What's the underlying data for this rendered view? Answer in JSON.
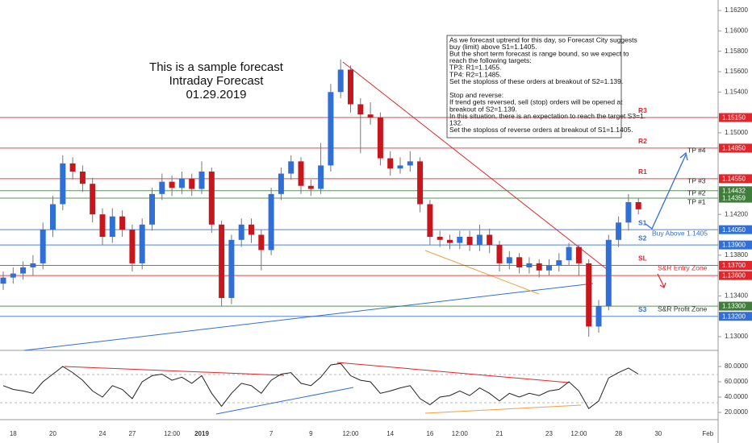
{
  "chart_data": {
    "type": "candlestick",
    "title_lines": [
      "This is a sample forecast",
      "Intraday Forecast",
      "01.29.2019"
    ],
    "note_lines": [
      "As we forecast uptrend for this day, so Forecast City suggests",
      "buy (limit) above S1=1.1405.",
      "But the short term forecast is range bound, so we expect to",
      "reach the following targets:",
      "TP3: R1=1.1455.",
      "TP4: R2=1.1485.",
      "Set the stoploss of these orders at breakout of S2=1.139.",
      "",
      "Stop and reverse:",
      "If trend gets reversed, sell (stop) orders will be opened at",
      "breakout of S2=1.139.",
      "In this situation, there is an expectation to reach the target S3=1.",
      "132.",
      "Set the stoploss of reverse orders at breakout of S1=1.1405."
    ],
    "categories": [
      null,
      "18",
      null,
      null,
      null,
      "20",
      null,
      null,
      null,
      null,
      "24",
      null,
      null,
      "27",
      null,
      null,
      null,
      "12:00",
      null,
      null,
      "2019",
      null,
      null,
      null,
      null,
      null,
      null,
      "7",
      null,
      null,
      null,
      "9",
      null,
      null,
      null,
      "12:00",
      null,
      null,
      null,
      "14",
      null,
      null,
      null,
      "16",
      null,
      null,
      "12:00",
      null,
      null,
      null,
      "21",
      null,
      null,
      null,
      null,
      "23",
      null,
      null,
      "12:00",
      null,
      null,
      null,
      "28",
      null,
      null,
      null,
      "30",
      null,
      null,
      null,
      null,
      "Feb"
    ],
    "open": [
      1.1352,
      1.1358,
      1.1362,
      1.1368,
      1.1372,
      1.1405,
      1.143,
      1.147,
      1.1462,
      1.145,
      1.142,
      1.1398,
      1.1418,
      1.1405,
      1.1372,
      1.141,
      1.144,
      1.1452,
      1.1446,
      1.1455,
      1.1445,
      1.1462,
      1.141,
      1.1338,
      1.1395,
      1.141,
      1.14,
      1.1385,
      1.144,
      1.146,
      1.1472,
      1.1448,
      1.1445,
      1.1468,
      1.154,
      1.1562,
      1.1528,
      1.1518,
      1.1515,
      1.1475,
      1.1465,
      1.1468,
      1.1472,
      1.143,
      1.1398,
      1.1395,
      1.1392,
      1.1398,
      1.139,
      1.14,
      1.139,
      1.1372,
      1.1378,
      1.1368,
      1.1372,
      1.1365,
      1.137,
      1.1375,
      1.1388,
      1.1372,
      1.131,
      1.133,
      1.1395,
      1.1412,
      1.1432,
      null,
      null,
      null,
      null,
      null,
      null,
      null
    ],
    "high": [
      1.1364,
      1.1368,
      1.1374,
      1.138,
      1.1412,
      1.1438,
      1.1478,
      1.1476,
      1.1468,
      1.1456,
      1.1426,
      1.1426,
      1.1424,
      1.141,
      1.1416,
      1.1446,
      1.146,
      1.1458,
      1.1462,
      1.146,
      1.1472,
      1.1466,
      1.1414,
      1.14,
      1.1416,
      1.1416,
      1.1405,
      1.1446,
      1.1466,
      1.1478,
      1.1476,
      1.1454,
      1.149,
      1.1548,
      1.1572,
      1.1566,
      1.1534,
      1.153,
      1.152,
      1.1482,
      1.1476,
      1.1482,
      1.1476,
      1.1434,
      1.1404,
      1.14,
      1.1404,
      1.1404,
      1.141,
      1.1406,
      1.1394,
      1.1384,
      1.1382,
      1.1378,
      1.1376,
      1.1376,
      1.1382,
      1.1392,
      1.139,
      1.1376,
      1.1336,
      1.14,
      1.1418,
      1.144,
      1.1436,
      null,
      null,
      null,
      null,
      null,
      null,
      null
    ],
    "low": [
      1.1346,
      1.1352,
      1.1356,
      1.136,
      1.1366,
      1.1398,
      1.1424,
      1.1454,
      1.1442,
      1.1412,
      1.139,
      1.1392,
      1.1398,
      1.1364,
      1.1366,
      1.1404,
      1.1434,
      1.1438,
      1.144,
      1.1438,
      1.144,
      1.1402,
      1.133,
      1.1332,
      1.1388,
      1.1392,
      1.1365,
      1.138,
      1.1434,
      1.1454,
      1.144,
      1.1438,
      1.144,
      1.1462,
      1.1534,
      1.152,
      1.148,
      1.1508,
      1.1468,
      1.1458,
      1.146,
      1.1462,
      1.1422,
      1.139,
      1.1388,
      1.1386,
      1.1386,
      1.1384,
      1.1384,
      1.1382,
      1.1364,
      1.1366,
      1.1362,
      1.1362,
      1.1358,
      1.136,
      1.1364,
      1.137,
      1.136,
      1.13,
      1.1304,
      1.1326,
      1.1388,
      1.1404,
      1.142,
      null,
      null,
      null,
      null,
      null,
      null,
      null
    ],
    "close": [
      1.1358,
      1.1362,
      1.1368,
      1.1372,
      1.1405,
      1.143,
      1.147,
      1.1462,
      1.145,
      1.142,
      1.1398,
      1.1418,
      1.1405,
      1.1372,
      1.141,
      1.144,
      1.1452,
      1.1446,
      1.1455,
      1.1445,
      1.1462,
      1.141,
      1.1338,
      1.1395,
      1.141,
      1.14,
      1.1385,
      1.144,
      1.146,
      1.1472,
      1.1448,
      1.1445,
      1.1468,
      1.154,
      1.1562,
      1.1528,
      1.1518,
      1.1515,
      1.1475,
      1.1465,
      1.1468,
      1.1472,
      1.143,
      1.1398,
      1.1395,
      1.1392,
      1.1398,
      1.139,
      1.14,
      1.139,
      1.1372,
      1.1378,
      1.1368,
      1.1372,
      1.1365,
      1.137,
      1.1375,
      1.1388,
      1.1372,
      1.131,
      1.133,
      1.1395,
      1.1412,
      1.1432,
      1.1425,
      null,
      null,
      null,
      null,
      null,
      null,
      null
    ],
    "up_color": "#2f6fd6",
    "down_color": "#c8161d",
    "ylim": [
      1.12866,
      1.16303
    ],
    "yticks": [
      {
        "value": 1.162,
        "label": "1.16200"
      },
      {
        "value": 1.16,
        "label": "1.16000"
      },
      {
        "value": 1.158,
        "label": "1.15800"
      },
      {
        "value": 1.156,
        "label": "1.15600"
      },
      {
        "value": 1.154,
        "label": "1.15400"
      },
      {
        "value": 1.15,
        "label": "1.15000"
      },
      {
        "value": 1.142,
        "label": "1.14200"
      },
      {
        "value": 1.138,
        "label": "1.13800"
      },
      {
        "value": 1.134,
        "label": "1.13400"
      },
      {
        "value": 1.13,
        "label": "1.13000"
      }
    ],
    "levels": [
      {
        "name": "R3",
        "value": 1.1515,
        "label": "1.15150",
        "color": "#e0262b"
      },
      {
        "name": "R2",
        "value": 1.1485,
        "label": "1.14850",
        "color": "#e0262b"
      },
      {
        "name": "R1",
        "value": 1.1455,
        "label": "1.14550",
        "color": "#e0262b"
      },
      {
        "value": 1.14432,
        "label": "1.14432",
        "color": "#3f7d3a"
      },
      {
        "value": 1.14359,
        "label": "1.14359",
        "color": "#3f7d3a"
      },
      {
        "name": "S1",
        "value": 1.1405,
        "label": "1.14050",
        "color": "#2f6fd6"
      },
      {
        "name": "S2",
        "value": 1.139,
        "label": "1.13900",
        "color": "#2f6fd6"
      },
      {
        "name": "SL",
        "value": 1.137,
        "label": "1.13700",
        "color": "#e0262b"
      },
      {
        "value": 1.136,
        "label": "1.13600",
        "color": "#e0262b"
      },
      {
        "value": 1.133,
        "label": "1.13300",
        "color": "#3f7d3a"
      },
      {
        "name": "S3",
        "value": 1.132,
        "label": "1.13200",
        "color": "#2f6fd6"
      }
    ],
    "annotations": [
      "TP #4",
      "TP #3",
      "TP #2",
      "TP #1",
      "Buy Above 1.1405",
      "S&R Entry Zone",
      "S&R Profit Zone"
    ],
    "rsi": {
      "values": [
        55,
        50,
        48,
        45,
        60,
        70,
        80,
        72,
        62,
        48,
        40,
        55,
        50,
        38,
        60,
        68,
        70,
        62,
        66,
        58,
        68,
        45,
        28,
        45,
        58,
        55,
        45,
        62,
        70,
        72,
        58,
        55,
        66,
        82,
        84,
        68,
        62,
        60,
        45,
        48,
        52,
        55,
        38,
        30,
        40,
        42,
        48,
        42,
        52,
        45,
        35,
        45,
        40,
        45,
        42,
        48,
        50,
        60,
        48,
        25,
        35,
        65,
        72,
        78,
        70,
        null,
        null,
        null,
        null,
        null,
        null,
        null
      ],
      "color": "#222",
      "ylim": [
        11.6,
        99
      ],
      "yticks": [
        {
          "value": 20,
          "label": "20.0000"
        },
        {
          "value": 40,
          "label": "40.0000"
        },
        {
          "value": 60,
          "label": "60.0000"
        },
        {
          "value": 80,
          "label": "80.0000"
        }
      ]
    }
  }
}
